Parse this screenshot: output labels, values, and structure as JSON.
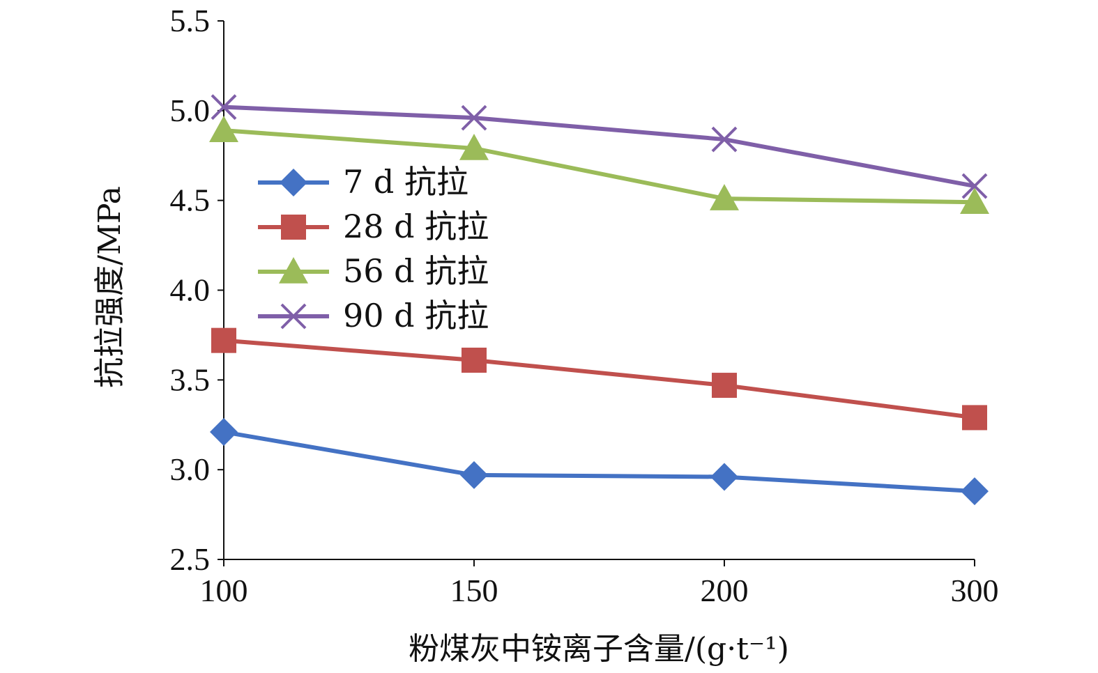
{
  "chart_data": {
    "type": "line",
    "categories": [
      "100",
      "150",
      "200",
      "300"
    ],
    "xlabel": "粉煤灰中铵离子含量/(g·t⁻¹)",
    "ylabel": "抗拉强度/MPa",
    "ylim": [
      2.5,
      5.5
    ],
    "yticks": [
      "2.5",
      "3.0",
      "3.5",
      "4.0",
      "4.5",
      "5.0",
      "5.5"
    ],
    "grid": false,
    "legend_position": "left",
    "series": [
      {
        "name": "7 d 抗拉",
        "values": [
          3.21,
          2.97,
          2.96,
          2.88
        ],
        "color": "#4472C4",
        "marker": "diamond"
      },
      {
        "name": "28 d 抗拉",
        "values": [
          3.72,
          3.61,
          3.47,
          3.29
        ],
        "color": "#C0504D",
        "marker": "square"
      },
      {
        "name": "56 d 抗拉",
        "values": [
          4.89,
          4.79,
          4.51,
          4.49
        ],
        "color": "#9BBB59",
        "marker": "triangle"
      },
      {
        "name": "90 d 抗拉",
        "values": [
          5.02,
          4.96,
          4.84,
          4.58
        ],
        "color": "#7F5FA8",
        "marker": "cross"
      }
    ]
  }
}
